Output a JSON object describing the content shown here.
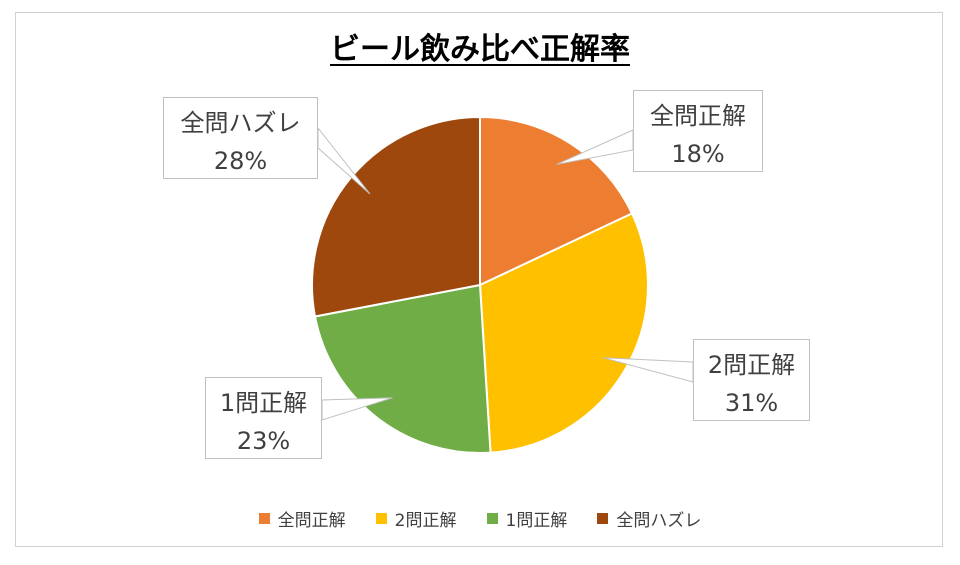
{
  "chart_data": {
    "type": "pie",
    "title": "ビール飲み比べ正解率",
    "slices": [
      {
        "label": "全問正解",
        "value": 18,
        "pct_label": "18%",
        "color": "#ED7D31"
      },
      {
        "label": "2問正解",
        "value": 31,
        "pct_label": "31%",
        "color": "#FFC000"
      },
      {
        "label": "1問正解",
        "value": 23,
        "pct_label": "23%",
        "color": "#70AD47"
      },
      {
        "label": "全問ハズレ",
        "value": 28,
        "pct_label": "28%",
        "color": "#9E480E"
      }
    ],
    "legend_position": "bottom"
  }
}
